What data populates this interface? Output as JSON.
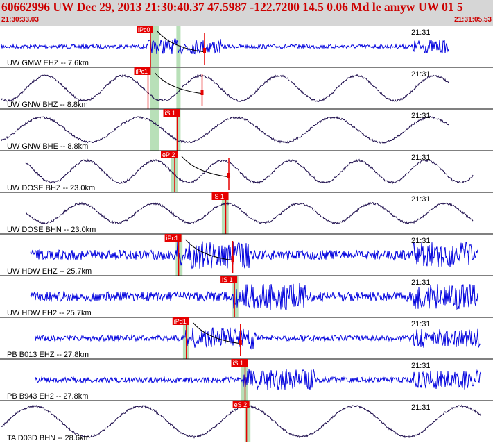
{
  "header": {
    "title": "60662996 UW Dec 29, 2013 21:30:40.37    47.5987 -122.7200 14.5 0.06 Md le amyw UW 01    5",
    "start_time": "21:30:33.03",
    "end_time": "21:31:05.53"
  },
  "colors": {
    "header_bg": "#d6d6d6",
    "header_text": "#cc0000",
    "pick_red": "#e60000",
    "window_green": "#b8e0b8",
    "trace_blue": "#0000dd",
    "trace_navy": "#1a0a4a"
  },
  "traces": [
    {
      "label": "UW GMW EHZ -- 7.6km",
      "time": "21:31",
      "pick": "iPc0",
      "style": "noise",
      "color": "blue",
      "amp": 5,
      "base_amp": 3,
      "onset": 0.305,
      "spike": 0.31,
      "green": [
        0.31,
        0.372
      ],
      "hasCoda": true,
      "xr": [
        0.0,
        0.925
      ]
    },
    {
      "label": "UW GNW BHZ -- 8.8km",
      "time": "21:31",
      "pick": "iPc1",
      "style": "wave",
      "color": "navy",
      "amp": 18,
      "period": 0.16,
      "onset": 0.305,
      "spike": 0.305,
      "green": [
        0.31,
        0.372
      ],
      "hasCoda": true,
      "xr": [
        0.0,
        0.925
      ]
    },
    {
      "label": "UW GNW BHE -- 8.8km",
      "time": "21:31",
      "pick": "iS 1",
      "style": "wave",
      "color": "navy",
      "amp": 18,
      "period": 0.2,
      "onset": 0.36,
      "spike": 0.365,
      "green": [
        0.31,
        0.372
      ],
      "hasCoda": false,
      "xr": [
        0.0,
        0.925
      ]
    },
    {
      "label": "UW DOSE BHZ -- 23.0km",
      "time": "21:31",
      "pick": "eP 2",
      "style": "wave",
      "color": "navy",
      "amp": 16,
      "period": 0.14,
      "onset": 0.355,
      "spike": 0.36,
      "green": [
        0.352,
        0.366
      ],
      "hasCoda": true,
      "xr": [
        0.05,
        0.975
      ]
    },
    {
      "label": "UW DOSE BHN -- 23.0km",
      "time": "21:31",
      "pick": "iS 1",
      "style": "wave",
      "color": "navy",
      "amp": 14,
      "period": 0.15,
      "onset": 0.462,
      "spike": 0.465,
      "green": [
        0.457,
        0.471
      ],
      "hasCoda": false,
      "xr": [
        0.05,
        0.975
      ]
    },
    {
      "label": "UW HDW EHZ -- 25.7km",
      "time": "21:31",
      "pick": "iPc1",
      "style": "noise",
      "color": "blue",
      "amp": 9,
      "base_amp": 7,
      "onset": 0.365,
      "spike": 0.368,
      "green": [
        0.362,
        0.376
      ],
      "hasCoda": true,
      "xr": [
        0.06,
        0.985
      ]
    },
    {
      "label": "UW HDW EH2 -- 25.7km",
      "time": "21:31",
      "pick": "iS 1",
      "style": "noise",
      "color": "blue",
      "amp": 9,
      "base_amp": 7,
      "onset": 0.48,
      "spike": 0.483,
      "green": [
        0.479,
        0.491
      ],
      "hasCoda": false,
      "xr": [
        0.06,
        0.985
      ]
    },
    {
      "label": "PB B013 EHZ -- 27.8km",
      "time": "21:31",
      "pick": "iPd1",
      "style": "noise",
      "color": "blue",
      "amp": 7,
      "base_amp": 4,
      "onset": 0.38,
      "spike": 0.384,
      "green": [
        0.377,
        0.39
      ],
      "hasCoda": true,
      "xr": [
        0.07,
        0.99
      ]
    },
    {
      "label": "PB B943 EH2 -- 27.8km",
      "time": "21:31",
      "pick": "iS 1",
      "style": "noise",
      "color": "blue",
      "amp": 7,
      "base_amp": 4,
      "onset": 0.5,
      "spike": 0.505,
      "green": [
        0.496,
        0.51
      ],
      "hasCoda": false,
      "xr": [
        0.07,
        0.99
      ]
    },
    {
      "label": "TA D03D BHN -- 28.6km",
      "time": "21:31",
      "pick": "eS 2",
      "style": "wave",
      "color": "navy",
      "amp": 22,
      "period": 0.22,
      "onset": 0.505,
      "spike": 0.508,
      "green": [
        0.504,
        0.516
      ],
      "hasCoda": false,
      "xr": [
        0.0,
        0.99
      ]
    }
  ]
}
